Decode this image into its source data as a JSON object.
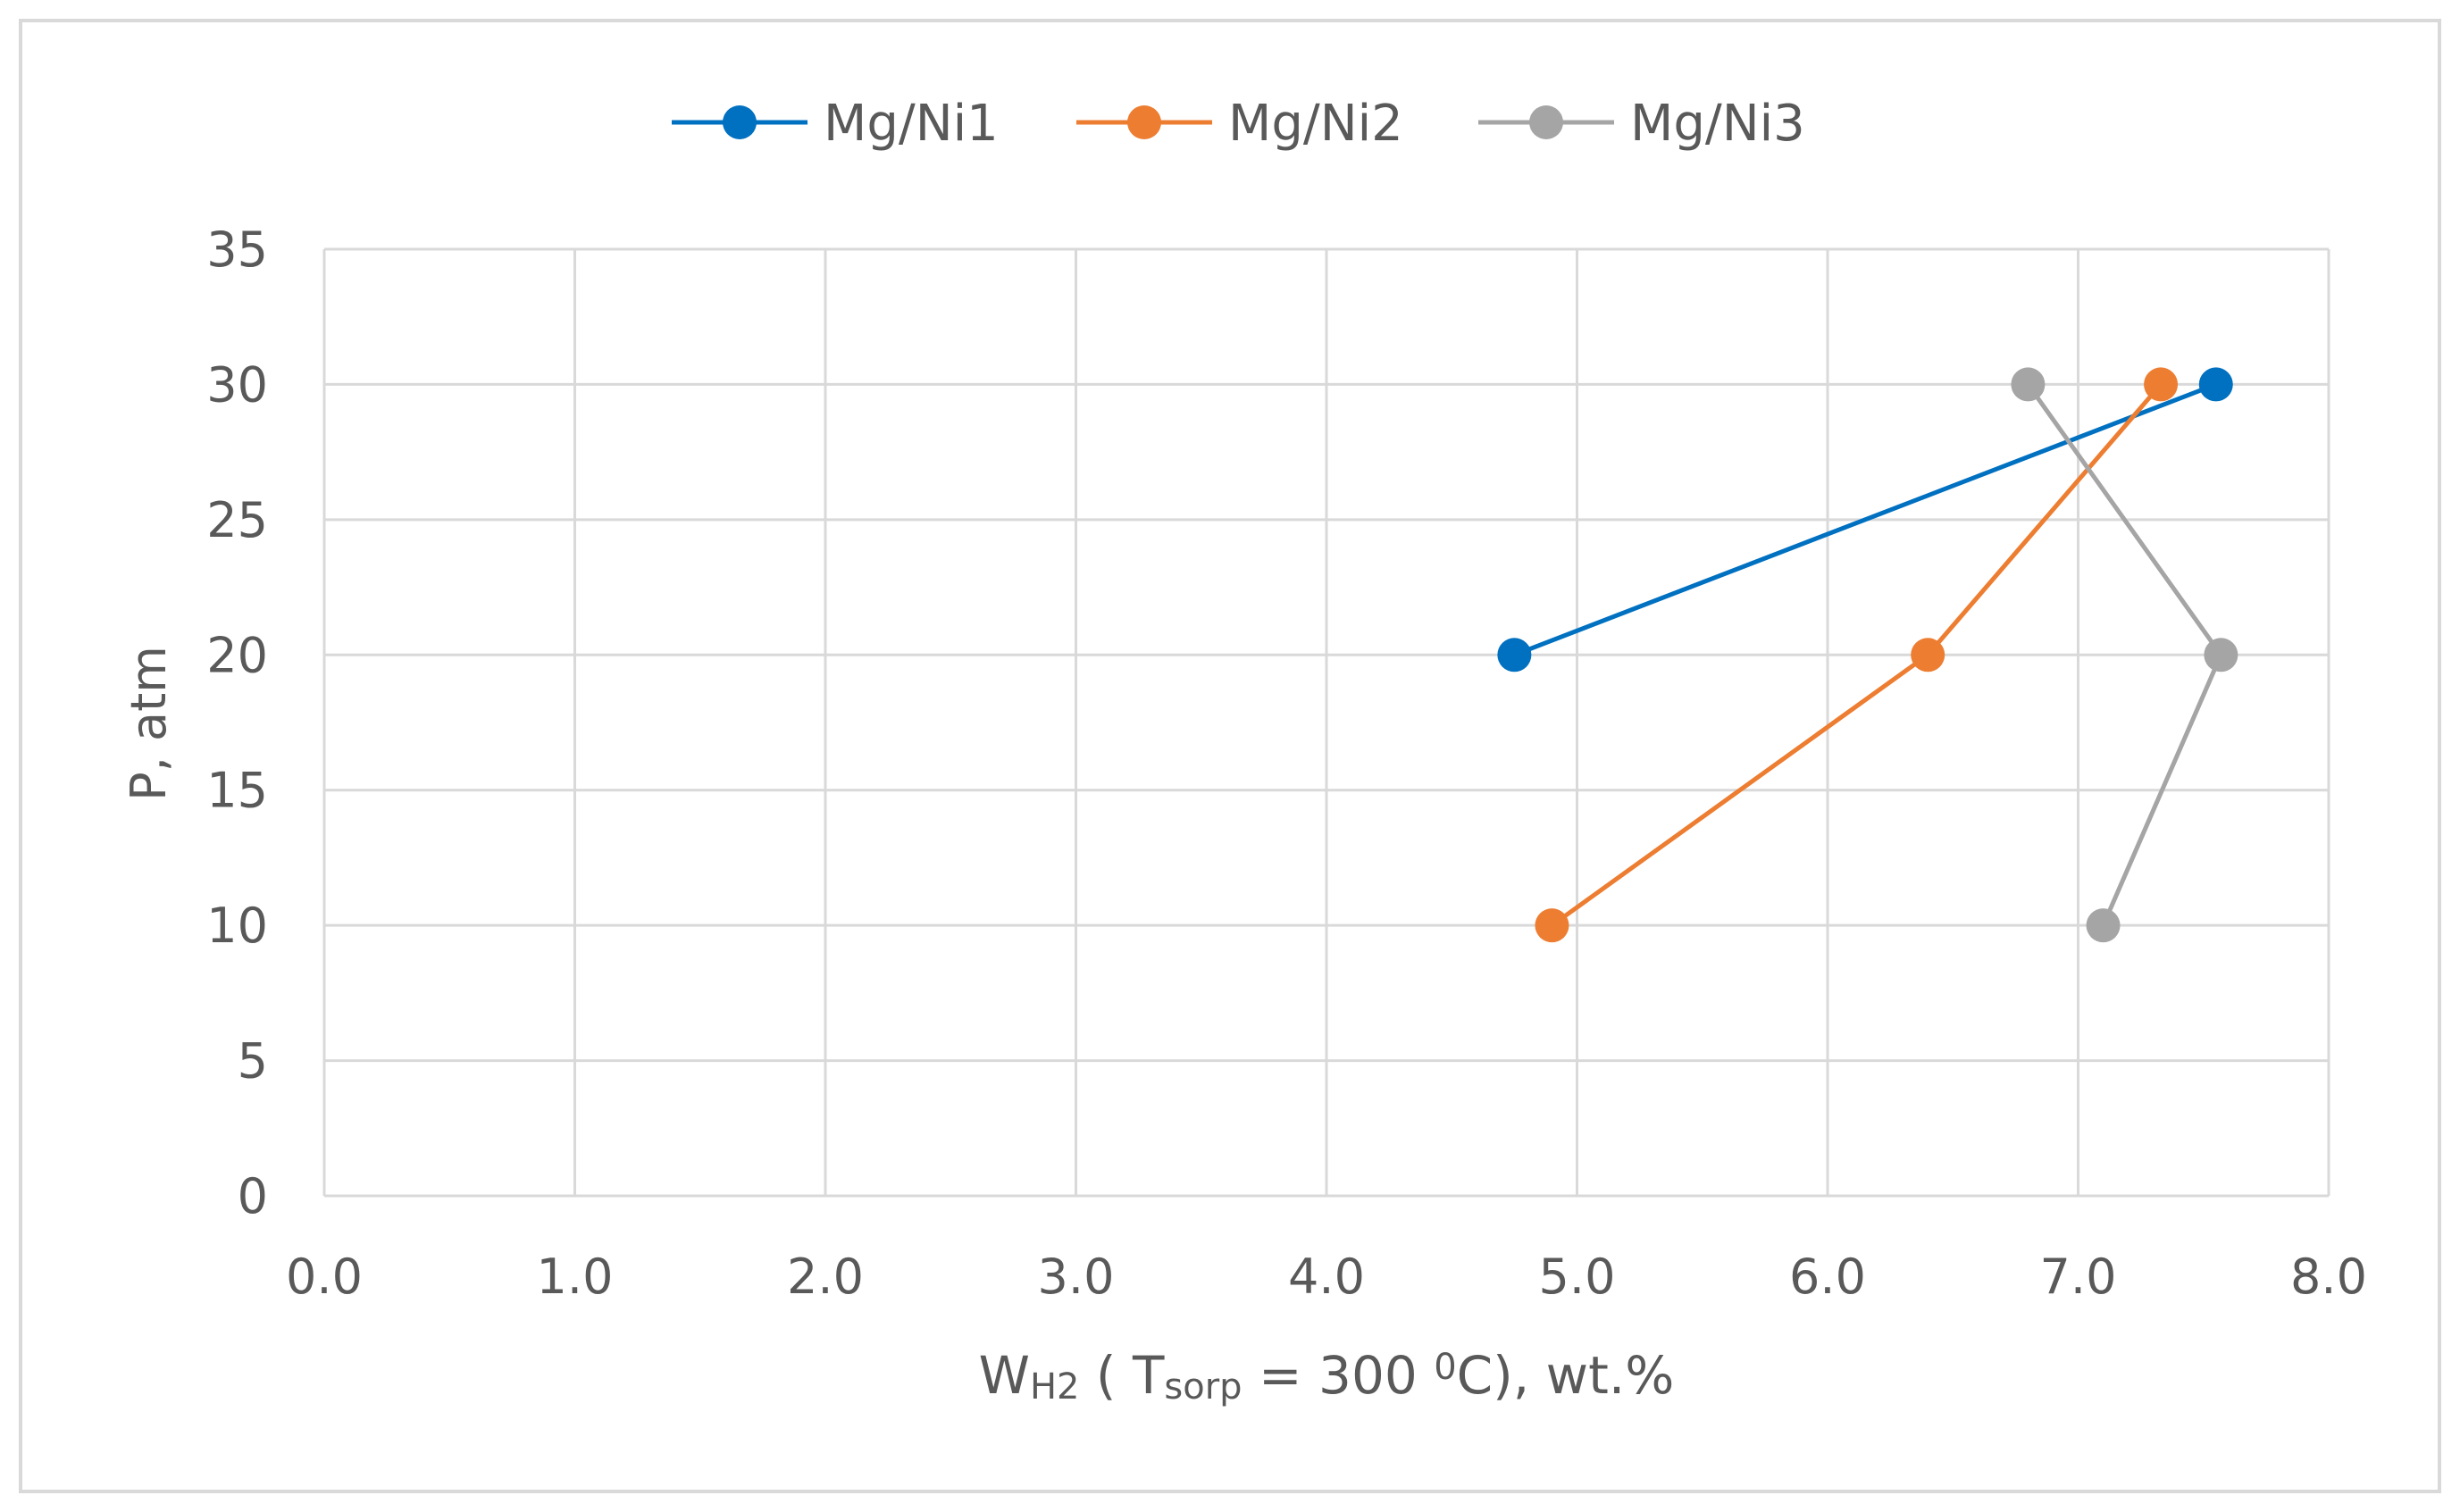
{
  "chart_data": {
    "type": "line",
    "title": "",
    "xlabel": {
      "parts": [
        "W",
        "H2",
        " ( T",
        "sorp",
        " = 300 ",
        "0",
        "C), wt.%"
      ]
    },
    "ylabel": "P, atm",
    "xlim": [
      0,
      8
    ],
    "ylim": [
      0,
      35
    ],
    "x_ticks": [
      0,
      1,
      2,
      3,
      4,
      5,
      6,
      7,
      8
    ],
    "x_tick_labels": [
      "0.0",
      "1.0",
      "2.0",
      "3.0",
      "4.0",
      "5.0",
      "6.0",
      "7.0",
      "8.0"
    ],
    "y_ticks": [
      0,
      5,
      10,
      15,
      20,
      25,
      30,
      35
    ],
    "y_tick_labels": [
      "0",
      "5",
      "10",
      "15",
      "20",
      "25",
      "30",
      "35"
    ],
    "grid": true,
    "legend_position": "top",
    "series": [
      {
        "name": "Mg/Ni1",
        "color": "#0070C0",
        "points": [
          [
            4.75,
            20
          ],
          [
            7.55,
            30
          ]
        ]
      },
      {
        "name": "Mg/Ni2",
        "color": "#ED7D31",
        "points": [
          [
            4.9,
            10
          ],
          [
            6.4,
            20
          ],
          [
            7.33,
            30
          ]
        ]
      },
      {
        "name": "Mg/Ni3",
        "color": "#A5A5A5",
        "points": [
          [
            7.1,
            10
          ],
          [
            7.57,
            20
          ],
          [
            6.8,
            30
          ]
        ]
      }
    ]
  }
}
